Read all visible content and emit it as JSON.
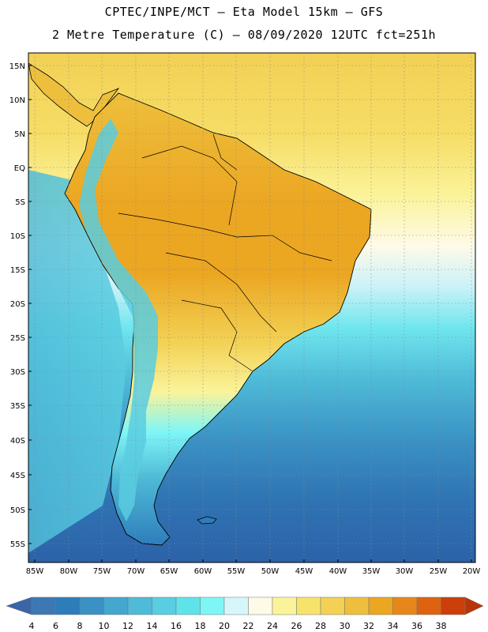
{
  "header": {
    "line1": "CPTEC/INPE/MCT –  Eta Model 15km – GFS",
    "line2": "2 Metre Temperature (C) – 08/09/2020 12UTC fct=251h"
  },
  "map": {
    "lat_labels": [
      "15N",
      "10N",
      "5N",
      "EQ",
      "5S",
      "10S",
      "15S",
      "20S",
      "25S",
      "30S",
      "35S",
      "40S",
      "45S",
      "50S",
      "55S"
    ],
    "lon_labels": [
      "85W",
      "80W",
      "75W",
      "70W",
      "65W",
      "60W",
      "55W",
      "50W",
      "45W",
      "40W",
      "35W",
      "30W",
      "25W",
      "20W"
    ],
    "grid": "dotted"
  },
  "colorbar": {
    "ticks": [
      "4",
      "6",
      "8",
      "10",
      "12",
      "14",
      "16",
      "18",
      "20",
      "22",
      "24",
      "26",
      "28",
      "30",
      "32",
      "34",
      "36",
      "38"
    ],
    "colors": [
      "#3d78b5",
      "#2e7dbb",
      "#3a92c4",
      "#44a7cf",
      "#4fbbd8",
      "#59cde1",
      "#5fe3ea",
      "#7ef6f6",
      "#d6f6fb",
      "#fefae8",
      "#fbf39a",
      "#f7e36c",
      "#f2d154",
      "#eebf3c",
      "#eba622",
      "#e7861a",
      "#de6210",
      "#cc3e0a"
    ],
    "left_arrow_color": "#3a66a8",
    "right_arrow_color": "#b8350a"
  }
}
